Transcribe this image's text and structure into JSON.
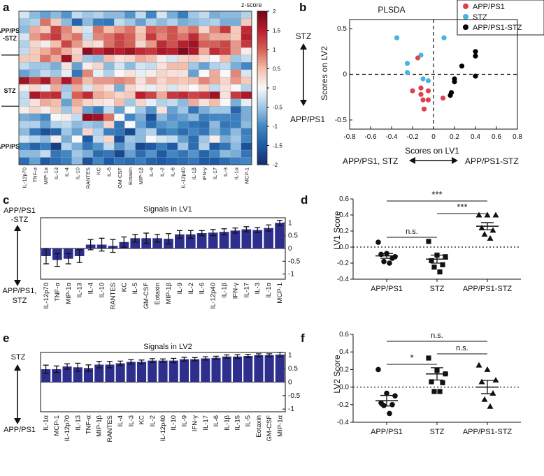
{
  "panel_labels": {
    "a": "a",
    "b": "b",
    "c": "c",
    "d": "d",
    "e": "e",
    "f": "f"
  },
  "chart_data": [
    {
      "id": "a",
      "type": "heatmap",
      "title": "",
      "colorbar_label": "z-score",
      "colorbar_ticks": [
        "2",
        "1.5",
        "1",
        "0.5",
        "0",
        "-0.5",
        "-1",
        "-1.5",
        "-2"
      ],
      "colorbar_range": [
        -2,
        2
      ],
      "columns": [
        "IL-12p70",
        "TNF-α",
        "MIP-1α",
        "IL-13",
        "IL-4",
        "IL-10",
        "RANTES",
        "KC",
        "IL-5",
        "GM-CSF",
        "Eotaxin",
        "MIP-1β",
        "IL-9",
        "IL-2",
        "IL-6",
        "IL-12p40",
        "IL-1β",
        "IFN-γ",
        "IL-17",
        "IL-3",
        "IL-1α",
        "MCP-1"
      ],
      "group_labels": [
        "APP/PS1\n-STZ",
        "STZ",
        "APP/PS1"
      ],
      "groups": [
        {
          "label_line1": "APP/PS1",
          "label_line2": "-STZ",
          "rows": [
            [
              -0.2,
              -0.6,
              -0.8,
              -0.6,
              -0.9,
              -0.3,
              -0.5,
              -0.4,
              -0.6,
              -0.6,
              -0.9,
              -0.3,
              -1.0,
              -0.2,
              -0.7,
              -1.1,
              -0.5,
              -0.3,
              -0.7,
              -0.6,
              -0.6,
              -0.4
            ],
            [
              -0.5,
              -0.4,
              0.9,
              0.4,
              -0.6,
              -1.4,
              -0.6,
              -1.1,
              -1.2,
              -0.3,
              -0.5,
              -0.8,
              -0.4,
              -0.6,
              -0.4,
              -0.7,
              -0.6,
              -0.5,
              -0.4,
              -0.7,
              -0.7,
              0.4
            ],
            [
              -0.6,
              0.6,
              0.4,
              1.2,
              0.8,
              0.3,
              -0.2,
              0.9,
              0.5,
              0.7,
              0.9,
              0.4,
              1.0,
              0.9,
              1.1,
              0.7,
              0.9,
              0.3,
              0.8,
              1.3,
              0.4,
              1.4
            ],
            [
              -0.2,
              0.7,
              1.0,
              1.3,
              0.7,
              0.9,
              -0.3,
              0.8,
              0.9,
              1.2,
              1.0,
              0.5,
              1.3,
              0.8,
              1.1,
              0.9,
              1.4,
              0.8,
              0.6,
              0.6,
              0.4,
              1.5
            ],
            [
              -0.4,
              0.3,
              0.1,
              0.5,
              1.2,
              0.7,
              0.3,
              0.2,
              0.9,
              1.2,
              1.0,
              0.3,
              0.7,
              1.4,
              1.1,
              1.5,
              1.7,
              1.0,
              1.0,
              1.2,
              0.7,
              1.3
            ],
            [
              -0.3,
              0.4,
              0.6,
              0.9,
              0.6,
              0.3,
              1.8,
              1.4,
              1.7,
              1.5,
              1.7,
              1.4,
              1.3,
              1.6,
              1.5,
              1.9,
              1.6,
              0.6,
              1.4,
              1.2,
              0.7,
              0.1
            ]
          ]
        },
        {
          "label_line1": "STZ",
          "label_line2": "",
          "rows": [
            [
              0.4,
              0.4,
              0.9,
              0.6,
              1.7,
              0.4,
              -0.5,
              -0.6,
              0.5,
              0.2,
              0.3,
              0.6,
              0.5,
              0.1,
              -0.2,
              0.3,
              0.4,
              0.2,
              0.0,
              0.5,
              -0.5,
              -0.3
            ],
            [
              -0.3,
              -0.5,
              -0.5,
              -0.7,
              0.2,
              -0.8,
              0.1,
              0.3,
              -0.6,
              -0.2,
              -0.6,
              -0.2,
              -0.3,
              0.2,
              0.5,
              0.5,
              -0.5,
              -0.8,
              -0.4,
              -0.3,
              -0.7,
              -1.0
            ],
            [
              -0.8,
              -0.6,
              -0.3,
              -0.5,
              -0.1,
              -1.2,
              0.8,
              -0.1,
              -0.4,
              0.0,
              0.2,
              -0.1,
              0.1,
              0.3,
              0.2,
              0.2,
              -0.8,
              0.0,
              0.6,
              0.0,
              0.8,
              -0.2
            ],
            [
              1.7,
              1.2,
              1.6,
              0.8,
              1.6,
              0.9,
              0.5,
              0.7,
              0.7,
              0.8,
              0.7,
              0.2,
              0.6,
              0.3,
              0.5,
              0.4,
              0.5,
              0.8,
              0.6,
              0.3,
              0.7,
              0.4
            ],
            [
              0.1,
              0.3,
              -0.1,
              0.6,
              -0.5,
              0.6,
              -0.2,
              0.4,
              0.2,
              -0.7,
              0.3,
              0.1,
              -0.1,
              0.2,
              -0.2,
              0.2,
              0.0,
              0.3,
              -0.3,
              0.2,
              0.0,
              -0.4
            ],
            [
              -0.3,
              1.6,
              1.3,
              1.4,
              -0.4,
              1.0,
              1.4,
              0.6,
              0.5,
              0.3,
              0.4,
              1.5,
              1.2,
              0.6,
              1.3,
              1.4,
              1.2,
              1.3,
              1.7,
              0.2,
              1.3,
              1.6
            ],
            [
              -0.3,
              0.2,
              0.6,
              0.5,
              -0.8,
              0.6,
              0.3,
              0.2,
              0.1,
              0.5,
              -0.5,
              0.3,
              -0.1,
              -0.4,
              -0.3,
              -0.6,
              0.6,
              0.2,
              0.5,
              0.0,
              -0.7,
              -0.1
            ]
          ]
        },
        {
          "label_line1": "APP/PS1",
          "label_line2": "",
          "rows": [
            [
              0.1,
              0.3,
              0.1,
              0.4,
              -0.5,
              0.4,
              -0.8,
              -1.1,
              -0.3,
              -0.8,
              0.0,
              -0.5,
              -0.9,
              0.2,
              -0.8,
              -0.5,
              -1.2,
              -0.7,
              -0.5,
              -0.5,
              -1.4,
              -0.7
            ],
            [
              -0.7,
              -0.8,
              -1.0,
              0.0,
              0.1,
              -0.3,
              1.8,
              1.7,
              0.9,
              0.0,
              -1.0,
              -0.7,
              -1.6,
              -0.6,
              -0.9,
              -0.8,
              -0.6,
              -1.1,
              -1.0,
              -1.0,
              -1.1,
              -0.7
            ],
            [
              -0.4,
              -0.4,
              -0.8,
              -0.4,
              -0.3,
              -0.6,
              -0.5,
              -0.6,
              0.3,
              -1.2,
              0.0,
              -0.8,
              -1.3,
              -0.9,
              -0.8,
              -1.0,
              -1.2,
              -1.3,
              -0.6,
              -1.2,
              -1.1,
              -0.6
            ],
            [
              -0.6,
              -1.2,
              -1.6,
              -1.4,
              -0.5,
              -0.8,
              0.3,
              -0.4,
              -1.1,
              -1.2,
              -1.7,
              -0.6,
              -0.4,
              -1.2,
              -1.0,
              -1.3,
              -1.0,
              -1.2,
              -0.7,
              -1.0,
              -0.6,
              -1.1
            ],
            [
              -0.2,
              -0.4,
              -0.6,
              0.1,
              -0.7,
              0.0,
              -1.5,
              -0.3,
              0.3,
              -1.6,
              -0.5,
              -0.6,
              0.0,
              -0.2,
              -0.3,
              -0.8,
              -1.3,
              -0.5,
              0.1,
              -0.7,
              -0.5,
              -1.0
            ],
            [
              -1.0,
              -1.4,
              -1.1,
              -1.8,
              -0.4,
              -0.7,
              -1.2,
              -0.9,
              -0.3,
              -0.9,
              -0.6,
              -1.7,
              -1.5,
              -1.1,
              -1.5,
              -0.5,
              -1.3,
              -0.4,
              -1.5,
              -1.2,
              -0.6,
              -1.6
            ],
            [
              -0.6,
              -0.6,
              -0.3,
              -1.2,
              -1.0,
              -0.5,
              -0.7,
              -1.3,
              -1.2,
              -1.7,
              -0.8,
              -1.3,
              -0.9,
              -1.5,
              -1.0,
              -1.2,
              -0.9,
              -1.4,
              -1.0,
              -0.6,
              -0.7,
              -1.2
            ],
            [
              -1.3,
              -0.8,
              -1.5,
              -1.3,
              -1.1,
              -0.6,
              -1.6,
              -1.0,
              -1.5,
              -1.2,
              -1.3,
              -1.1,
              -1.4,
              -1.5,
              -1.4,
              -1.3,
              -1.2,
              -1.5,
              -1.5,
              -1.3,
              -1.1,
              -1.0
            ]
          ]
        }
      ]
    },
    {
      "id": "b",
      "type": "scatter",
      "title": "PLSDA",
      "xlabel": "Scores on LV1",
      "ylabel": "Scores on LV2",
      "xlim": [
        -0.8,
        0.8
      ],
      "ylim": [
        -0.6,
        0.6
      ],
      "xticks": [
        -0.8,
        -0.6,
        -0.4,
        -0.2,
        0,
        0.2,
        0.4,
        0.6,
        0.8
      ],
      "yticks": [
        -0.5,
        0,
        0.5
      ],
      "x_axis_annotation_left": "APP/PS1, STZ",
      "x_axis_annotation_right": "APP/PS1-STZ",
      "y_axis_annotation_top": "STZ",
      "y_axis_annotation_bottom": "APP/PS1",
      "legend_position": "top-right",
      "series": [
        {
          "name": "APP/PS1",
          "color": "#e0404a",
          "points": [
            [
              -0.15,
              0.18
            ],
            [
              -0.12,
              -0.15
            ],
            [
              -0.2,
              -0.18
            ],
            [
              -0.1,
              -0.28
            ],
            [
              -0.09,
              -0.38
            ],
            [
              -0.05,
              -0.28
            ],
            [
              0.09,
              -0.26
            ],
            [
              -0.12,
              -0.22
            ],
            [
              -0.05,
              -0.18
            ]
          ]
        },
        {
          "name": "STZ",
          "color": "#45b3e6",
          "points": [
            [
              -0.35,
              0.4
            ],
            [
              -0.25,
              0.12
            ],
            [
              -0.25,
              0.02
            ],
            [
              -0.12,
              0.21
            ],
            [
              -0.1,
              -0.05
            ],
            [
              -0.05,
              -0.07
            ],
            [
              0.1,
              0.4
            ]
          ]
        },
        {
          "name": "APP/PS1-STZ",
          "color": "#000000",
          "points": [
            [
              0.4,
              0.25
            ],
            [
              0.4,
              0.2
            ],
            [
              0.27,
              0.09
            ],
            [
              0.4,
              -0.02
            ],
            [
              0.17,
              -0.2
            ],
            [
              0.16,
              -0.23
            ],
            [
              0.2,
              -0.08
            ],
            [
              0.2,
              -0.05
            ]
          ]
        }
      ]
    },
    {
      "id": "c",
      "type": "bar",
      "title": "Signals in LV1",
      "y_annotation_top": "APP/PS1\n-STZ",
      "y_annotation_top_line1": "APP/PS1",
      "y_annotation_top_line2": "-STZ",
      "y_annotation_bottom_line1": "APP/PS1,",
      "y_annotation_bottom_line2": "STZ",
      "ylim": [
        -1.2,
        1.2
      ],
      "yticks": [
        "1",
        "0.5",
        "0",
        "-0.5",
        "-1"
      ],
      "categories": [
        "IL-12p70",
        "TNF-α",
        "MIP-1α",
        "IL-13",
        "IL-4",
        "IL-10",
        "RANTES",
        "KC",
        "IL-5",
        "GM-CSF",
        "Eotaxin",
        "MIP-1β",
        "IL-9",
        "IL-2",
        "IL-6",
        "IL-12p40",
        "IL-1β",
        "IFN-γ",
        "IL-17",
        "IL-3",
        "IL-1α",
        "MCP-1"
      ],
      "values": [
        -0.3,
        -0.45,
        -0.4,
        -0.3,
        0.15,
        0.15,
        0.1,
        0.25,
        0.4,
        0.4,
        0.4,
        0.38,
        0.55,
        0.55,
        0.6,
        0.62,
        0.65,
        0.7,
        0.75,
        0.72,
        0.8,
        1.0
      ],
      "errors": [
        0.3,
        0.25,
        0.2,
        0.25,
        0.2,
        0.25,
        0.25,
        0.2,
        0.15,
        0.2,
        0.15,
        0.2,
        0.15,
        0.15,
        0.1,
        0.12,
        0.12,
        0.1,
        0.1,
        0.1,
        0.12,
        0.1
      ]
    },
    {
      "id": "d",
      "type": "scatter",
      "title": "",
      "ylabel": "LV1 Score",
      "ylim": [
        -0.4,
        0.6
      ],
      "yticks": [
        "0.6",
        "0.4",
        "0.2",
        "0.0",
        "-0.2",
        "-0.4"
      ],
      "categories": [
        "APP/PS1",
        "STZ",
        "APP/PS1-STZ"
      ],
      "markers": [
        "circle",
        "square",
        "triangle"
      ],
      "points": [
        [
          0.06,
          -0.08,
          -0.12,
          -0.09,
          -0.14,
          -0.18,
          -0.2
        ],
        [
          0.07,
          -0.1,
          -0.12,
          -0.17,
          -0.22,
          -0.25,
          -0.31
        ],
        [
          0.4,
          0.4,
          0.4,
          0.24,
          0.21,
          0.16,
          0.11
        ]
      ],
      "means": [
        -0.11,
        -0.15,
        0.26
      ],
      "sems": [
        0.03,
        0.05,
        0.045
      ],
      "significance": [
        {
          "from": "APP/PS1",
          "to": "APP/PS1-STZ",
          "label": "***"
        },
        {
          "from": "STZ",
          "to": "APP/PS1-STZ",
          "label": "***"
        },
        {
          "from": "APP/PS1",
          "to": "STZ",
          "label": "n.s."
        }
      ]
    },
    {
      "id": "e",
      "type": "bar",
      "title": "Signals in LV2",
      "y_annotation_top_line1": "STZ",
      "y_annotation_bottom_line1": "APP/PS1",
      "ylim": [
        -1.1,
        1.1
      ],
      "yticks": [
        "1",
        "0.5",
        "0",
        "-0.5",
        "-1"
      ],
      "categories": [
        "IL-1α",
        "MCP-1",
        "IL-12p70",
        "IL-13",
        "TNF-α",
        "MIP-1β",
        "RANTES",
        "IL-4",
        "IL-3",
        "KC",
        "IL-2",
        "IL-12p40",
        "IL-10",
        "IL-9",
        "IFN-γ",
        "IL-17",
        "IL-6",
        "IL-1β",
        "IL-15",
        "IL-5",
        "Eotaxin",
        "GM-CSF",
        "MIP-1α"
      ],
      "values": [
        0.48,
        0.48,
        0.58,
        0.55,
        0.52,
        0.65,
        0.65,
        0.7,
        0.75,
        0.75,
        0.8,
        0.8,
        0.8,
        0.85,
        0.85,
        0.88,
        0.9,
        0.95,
        0.95,
        0.97,
        1.0,
        1.0,
        1.02
      ],
      "errors": [
        0.15,
        0.12,
        0.1,
        0.15,
        0.12,
        0.12,
        0.12,
        0.08,
        0.08,
        0.07,
        0.07,
        0.06,
        0.08,
        0.07,
        0.06,
        0.06,
        0.06,
        0.06,
        0.07,
        0.06,
        0.05,
        0.05,
        0.08
      ]
    },
    {
      "id": "f",
      "type": "scatter",
      "title": "",
      "ylabel": "LV2 Score",
      "ylim": [
        -0.4,
        0.6
      ],
      "yticks": [
        "0.6",
        "0.4",
        "0.2",
        "0.0",
        "-0.2",
        "-0.4"
      ],
      "categories": [
        "APP/PS1",
        "STZ",
        "APP/PS1-STZ"
      ],
      "markers": [
        "circle",
        "square",
        "triangle"
      ],
      "points": [
        [
          0.2,
          -0.07,
          -0.1,
          -0.18,
          -0.2,
          -0.21,
          -0.3
        ],
        [
          0.33,
          0.19,
          0.15,
          0.06,
          0.05,
          -0.05,
          -0.05
        ],
        [
          0.25,
          0.2,
          0.08,
          0.06,
          -0.07,
          -0.14,
          -0.22
        ]
      ],
      "means": [
        -0.155,
        0.15,
        0.0
      ],
      "sems": [
        0.06,
        0.07,
        0.075
      ],
      "significance": [
        {
          "from": "APP/PS1",
          "to": "APP/PS1-STZ",
          "label": "n.s."
        },
        {
          "from": "STZ",
          "to": "APP/PS1-STZ",
          "label": "n.s."
        },
        {
          "from": "APP/PS1",
          "to": "STZ",
          "label": "*"
        }
      ]
    }
  ]
}
